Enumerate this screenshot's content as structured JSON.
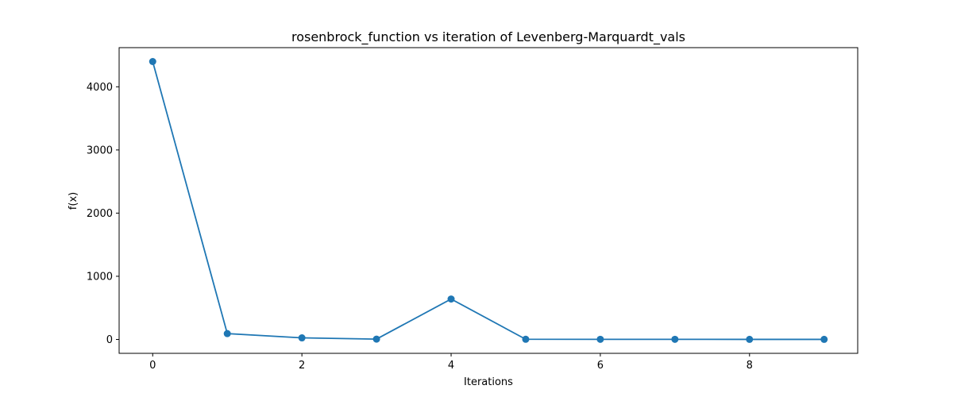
{
  "chart_data": {
    "type": "line",
    "title": "rosenbrock_function vs iteration of Levenberg-Marquardt_vals",
    "xlabel": "Iterations",
    "ylabel": "f(x)",
    "x": [
      0,
      1,
      2,
      3,
      4,
      5,
      6,
      7,
      8,
      9
    ],
    "series": [
      {
        "values": [
          4400,
          92,
          25,
          5,
          640,
          3,
          2,
          2,
          1,
          1
        ],
        "color": "#1f77b4",
        "marker": "circle"
      }
    ],
    "xlim": [
      -0.45,
      9.45
    ],
    "ylim": [
      -220,
      4620
    ],
    "xticks": [
      0,
      2,
      4,
      6,
      8
    ],
    "yticks": [
      0,
      1000,
      2000,
      3000,
      4000
    ],
    "grid": false
  }
}
